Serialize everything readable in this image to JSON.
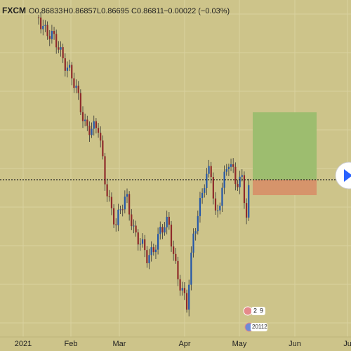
{
  "header": {
    "symbol": "FXCM",
    "open": "O0.86833",
    "high": "H0.86857",
    "low": "L0.86695",
    "close": "C0.86811",
    "change": "−0.00022 (−0.03%)"
  },
  "x_axis": {
    "labels": [
      "2021",
      "Feb",
      "Mar",
      "Apr",
      "May",
      "Jun",
      "Ju"
    ]
  },
  "badges": [
    "2",
    "9",
    "20112"
  ]
}
